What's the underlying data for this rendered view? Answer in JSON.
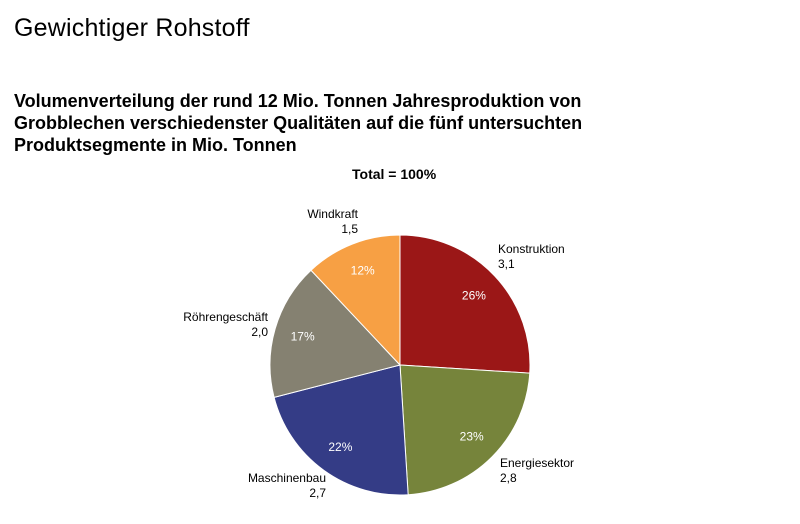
{
  "header": {
    "title": "Gewichtiger  Rohstoff",
    "subtitle_lines": [
      "Volumenverteilung der rund 12 Mio. Tonnen Jahresproduktion  von",
      "Grobblechen  verschiedenster  Qualitäten auf die fünf untersuchten",
      "Produktsegmente  in Mio. Tonnen"
    ]
  },
  "chart_data": {
    "type": "pie",
    "title": "Total = 100%",
    "slices": [
      {
        "label": "Konstruktion",
        "value": 3.1,
        "value_text": "3,1",
        "percent": 26,
        "percent_text": "26%",
        "color": "#9b1717"
      },
      {
        "label": "Energiesektor",
        "value": 2.8,
        "value_text": "2,8",
        "percent": 23,
        "percent_text": "23%",
        "color": "#76843b"
      },
      {
        "label": "Maschinenbau",
        "value": 2.7,
        "value_text": "2,7",
        "percent": 22,
        "percent_text": "22%",
        "color": "#343c86"
      },
      {
        "label": "Röhrengeschäft",
        "value": 2.0,
        "value_text": "2,0",
        "percent": 17,
        "percent_text": "17%",
        "color": "#858171"
      },
      {
        "label": "Windkraft",
        "value": 1.5,
        "value_text": "1,5",
        "percent": 12,
        "percent_text": "12%",
        "color": "#f7a044"
      }
    ]
  }
}
